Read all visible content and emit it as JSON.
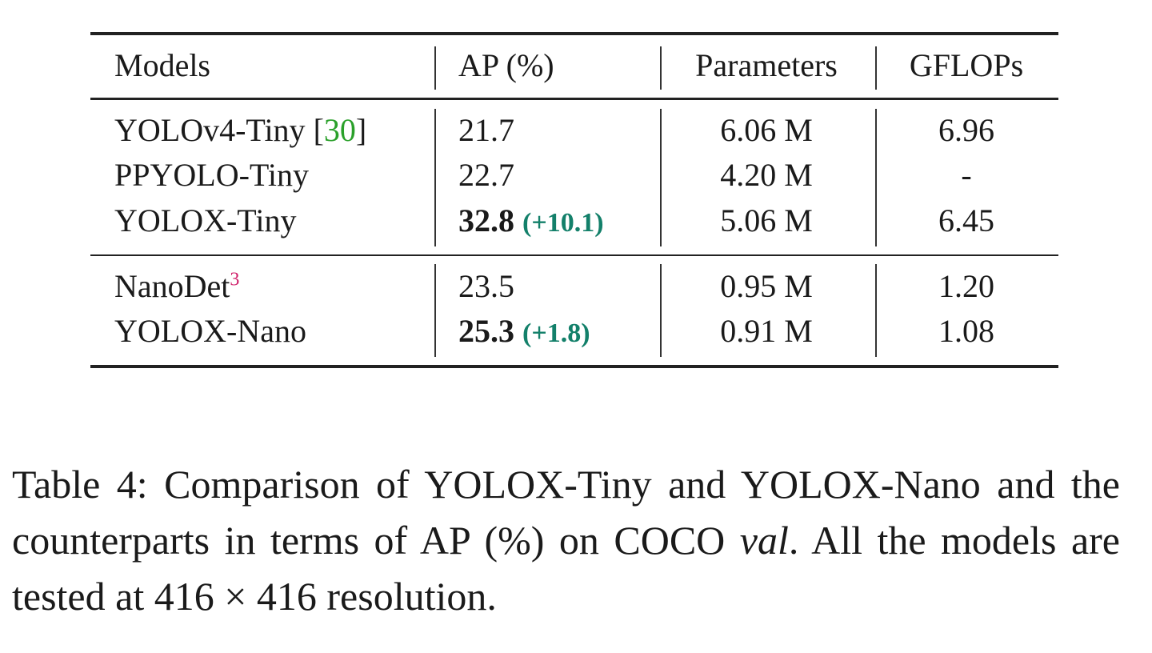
{
  "table": {
    "header": [
      "Models",
      "AP (%)",
      "Parameters",
      "GFLOPs"
    ],
    "groups": [
      [
        {
          "model": "YOLOv4-Tiny",
          "cite": [
            "[",
            "30",
            "]"
          ],
          "ap": "21.7",
          "params": "6.06 M",
          "gflops": "6.96"
        },
        {
          "model": "PPYOLO-Tiny",
          "ap": "22.7",
          "params": "4.20 M",
          "gflops": "-"
        },
        {
          "model": "YOLOX-Tiny",
          "ap": "32.8",
          "ap_delta": "(+10.1)",
          "highlight": true,
          "params": "5.06 M",
          "gflops": "6.45"
        }
      ],
      [
        {
          "model": "NanoDet",
          "sup": "3",
          "ap": "23.5",
          "params": "0.95 M",
          "gflops": "1.20"
        },
        {
          "model": "YOLOX-Nano",
          "ap": "25.3",
          "ap_delta": "(+1.8)",
          "highlight": true,
          "params": "0.91 M",
          "gflops": "1.08"
        }
      ]
    ]
  },
  "caption": [
    "Table 4: Comparison of YOLOX-Tiny and YOLOX-Nano and the counterparts in terms of AP (%) on COCO ",
    "val",
    ". All the models are tested at 416 × 416 resolution."
  ]
}
